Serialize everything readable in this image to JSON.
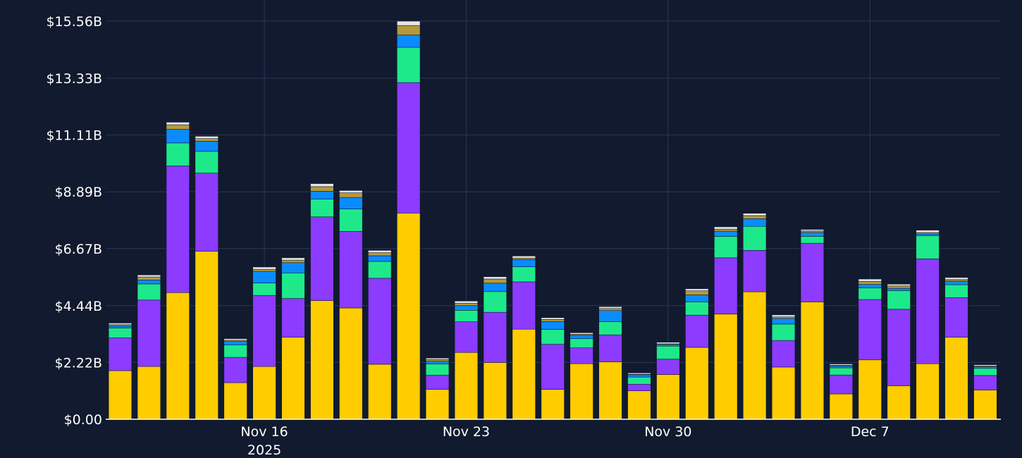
{
  "chart_data": {
    "type": "bar",
    "stacked": true,
    "title": "",
    "xlabel": "",
    "ylabel": "",
    "grid": true,
    "legend": "none",
    "ylim": [
      0,
      15.56
    ],
    "y_ticks": [
      {
        "value": 0,
        "label": "$0.00"
      },
      {
        "value": 2.22,
        "label": "$2.22B"
      },
      {
        "value": 4.44,
        "label": "$4.44B"
      },
      {
        "value": 6.67,
        "label": "$6.67B"
      },
      {
        "value": 8.89,
        "label": "$8.89B"
      },
      {
        "value": 11.11,
        "label": "$11.11B"
      },
      {
        "value": 13.33,
        "label": "$13.33B"
      },
      {
        "value": 15.56,
        "label": "$15.56B"
      }
    ],
    "x_ticks": [
      {
        "date": "2025-11-16",
        "label": "Nov 16",
        "sublabel": "2025"
      },
      {
        "date": "2025-11-23",
        "label": "Nov 23",
        "sublabel": ""
      },
      {
        "date": "2025-11-30",
        "label": "Nov 30",
        "sublabel": ""
      },
      {
        "date": "2025-12-07",
        "label": "Dec 7",
        "sublabel": ""
      }
    ],
    "categories": [
      "2025-11-11",
      "2025-11-12",
      "2025-11-13",
      "2025-11-14",
      "2025-11-15",
      "2025-11-16",
      "2025-11-17",
      "2025-11-18",
      "2025-11-19",
      "2025-11-20",
      "2025-11-21",
      "2025-11-22",
      "2025-11-23",
      "2025-11-24",
      "2025-11-25",
      "2025-11-26",
      "2025-11-27",
      "2025-11-28",
      "2025-11-29",
      "2025-11-30",
      "2025-12-01",
      "2025-12-02",
      "2025-12-03",
      "2025-12-04",
      "2025-12-05",
      "2025-12-06",
      "2025-12-07",
      "2025-12-08",
      "2025-12-09",
      "2025-12-10",
      "2025-12-11"
    ],
    "series": [
      {
        "color": "#ffcc00",
        "values": [
          1.9,
          2.06,
          4.95,
          6.57,
          1.43,
          2.06,
          3.21,
          4.64,
          4.35,
          2.15,
          8.06,
          1.17,
          2.61,
          2.22,
          3.52,
          1.17,
          2.17,
          2.24,
          1.11,
          1.75,
          2.81,
          4.11,
          4.98,
          2.04,
          4.58,
          0.99,
          2.32,
          1.31,
          2.17,
          3.21,
          1.14
        ]
      },
      {
        "color": "#8c3bff",
        "values": [
          1.28,
          2.6,
          4.95,
          3.05,
          0.99,
          2.78,
          1.51,
          3.27,
          2.99,
          3.36,
          5.1,
          0.55,
          1.2,
          1.96,
          1.85,
          1.76,
          0.62,
          1.06,
          0.26,
          0.6,
          1.26,
          2.2,
          1.62,
          1.04,
          2.3,
          0.74,
          2.36,
          2.99,
          4.1,
          1.54,
          0.57
        ]
      },
      {
        "color": "#1de98b",
        "values": [
          0.39,
          0.63,
          0.9,
          0.85,
          0.49,
          0.49,
          1.0,
          0.7,
          0.88,
          0.66,
          1.38,
          0.44,
          0.45,
          0.81,
          0.59,
          0.58,
          0.36,
          0.51,
          0.28,
          0.51,
          0.51,
          0.84,
          0.94,
          0.64,
          0.27,
          0.28,
          0.45,
          0.73,
          0.91,
          0.51,
          0.28
        ]
      },
      {
        "color": "#0a8cff",
        "values": [
          0.08,
          0.15,
          0.53,
          0.4,
          0.13,
          0.45,
          0.4,
          0.3,
          0.45,
          0.22,
          0.48,
          0.1,
          0.18,
          0.33,
          0.28,
          0.31,
          0.13,
          0.44,
          0.09,
          0.06,
          0.28,
          0.2,
          0.3,
          0.22,
          0.15,
          0.07,
          0.14,
          0.09,
          0.06,
          0.14,
          0.06
        ]
      },
      {
        "color": "#b59a3c",
        "values": [
          0.05,
          0.12,
          0.18,
          0.1,
          0.05,
          0.08,
          0.1,
          0.18,
          0.18,
          0.12,
          0.37,
          0.07,
          0.09,
          0.16,
          0.06,
          0.08,
          0.04,
          0.08,
          0.02,
          0.03,
          0.16,
          0.08,
          0.12,
          0.06,
          0.06,
          0.03,
          0.12,
          0.09,
          0.06,
          0.06,
          0.03
        ]
      },
      {
        "color": "#e6e6e6",
        "values": [
          0.06,
          0.08,
          0.1,
          0.09,
          0.06,
          0.09,
          0.09,
          0.12,
          0.09,
          0.09,
          0.17,
          0.06,
          0.09,
          0.09,
          0.08,
          0.07,
          0.06,
          0.07,
          0.05,
          0.06,
          0.08,
          0.09,
          0.09,
          0.08,
          0.06,
          0.05,
          0.09,
          0.07,
          0.09,
          0.08,
          0.05
        ]
      }
    ]
  }
}
